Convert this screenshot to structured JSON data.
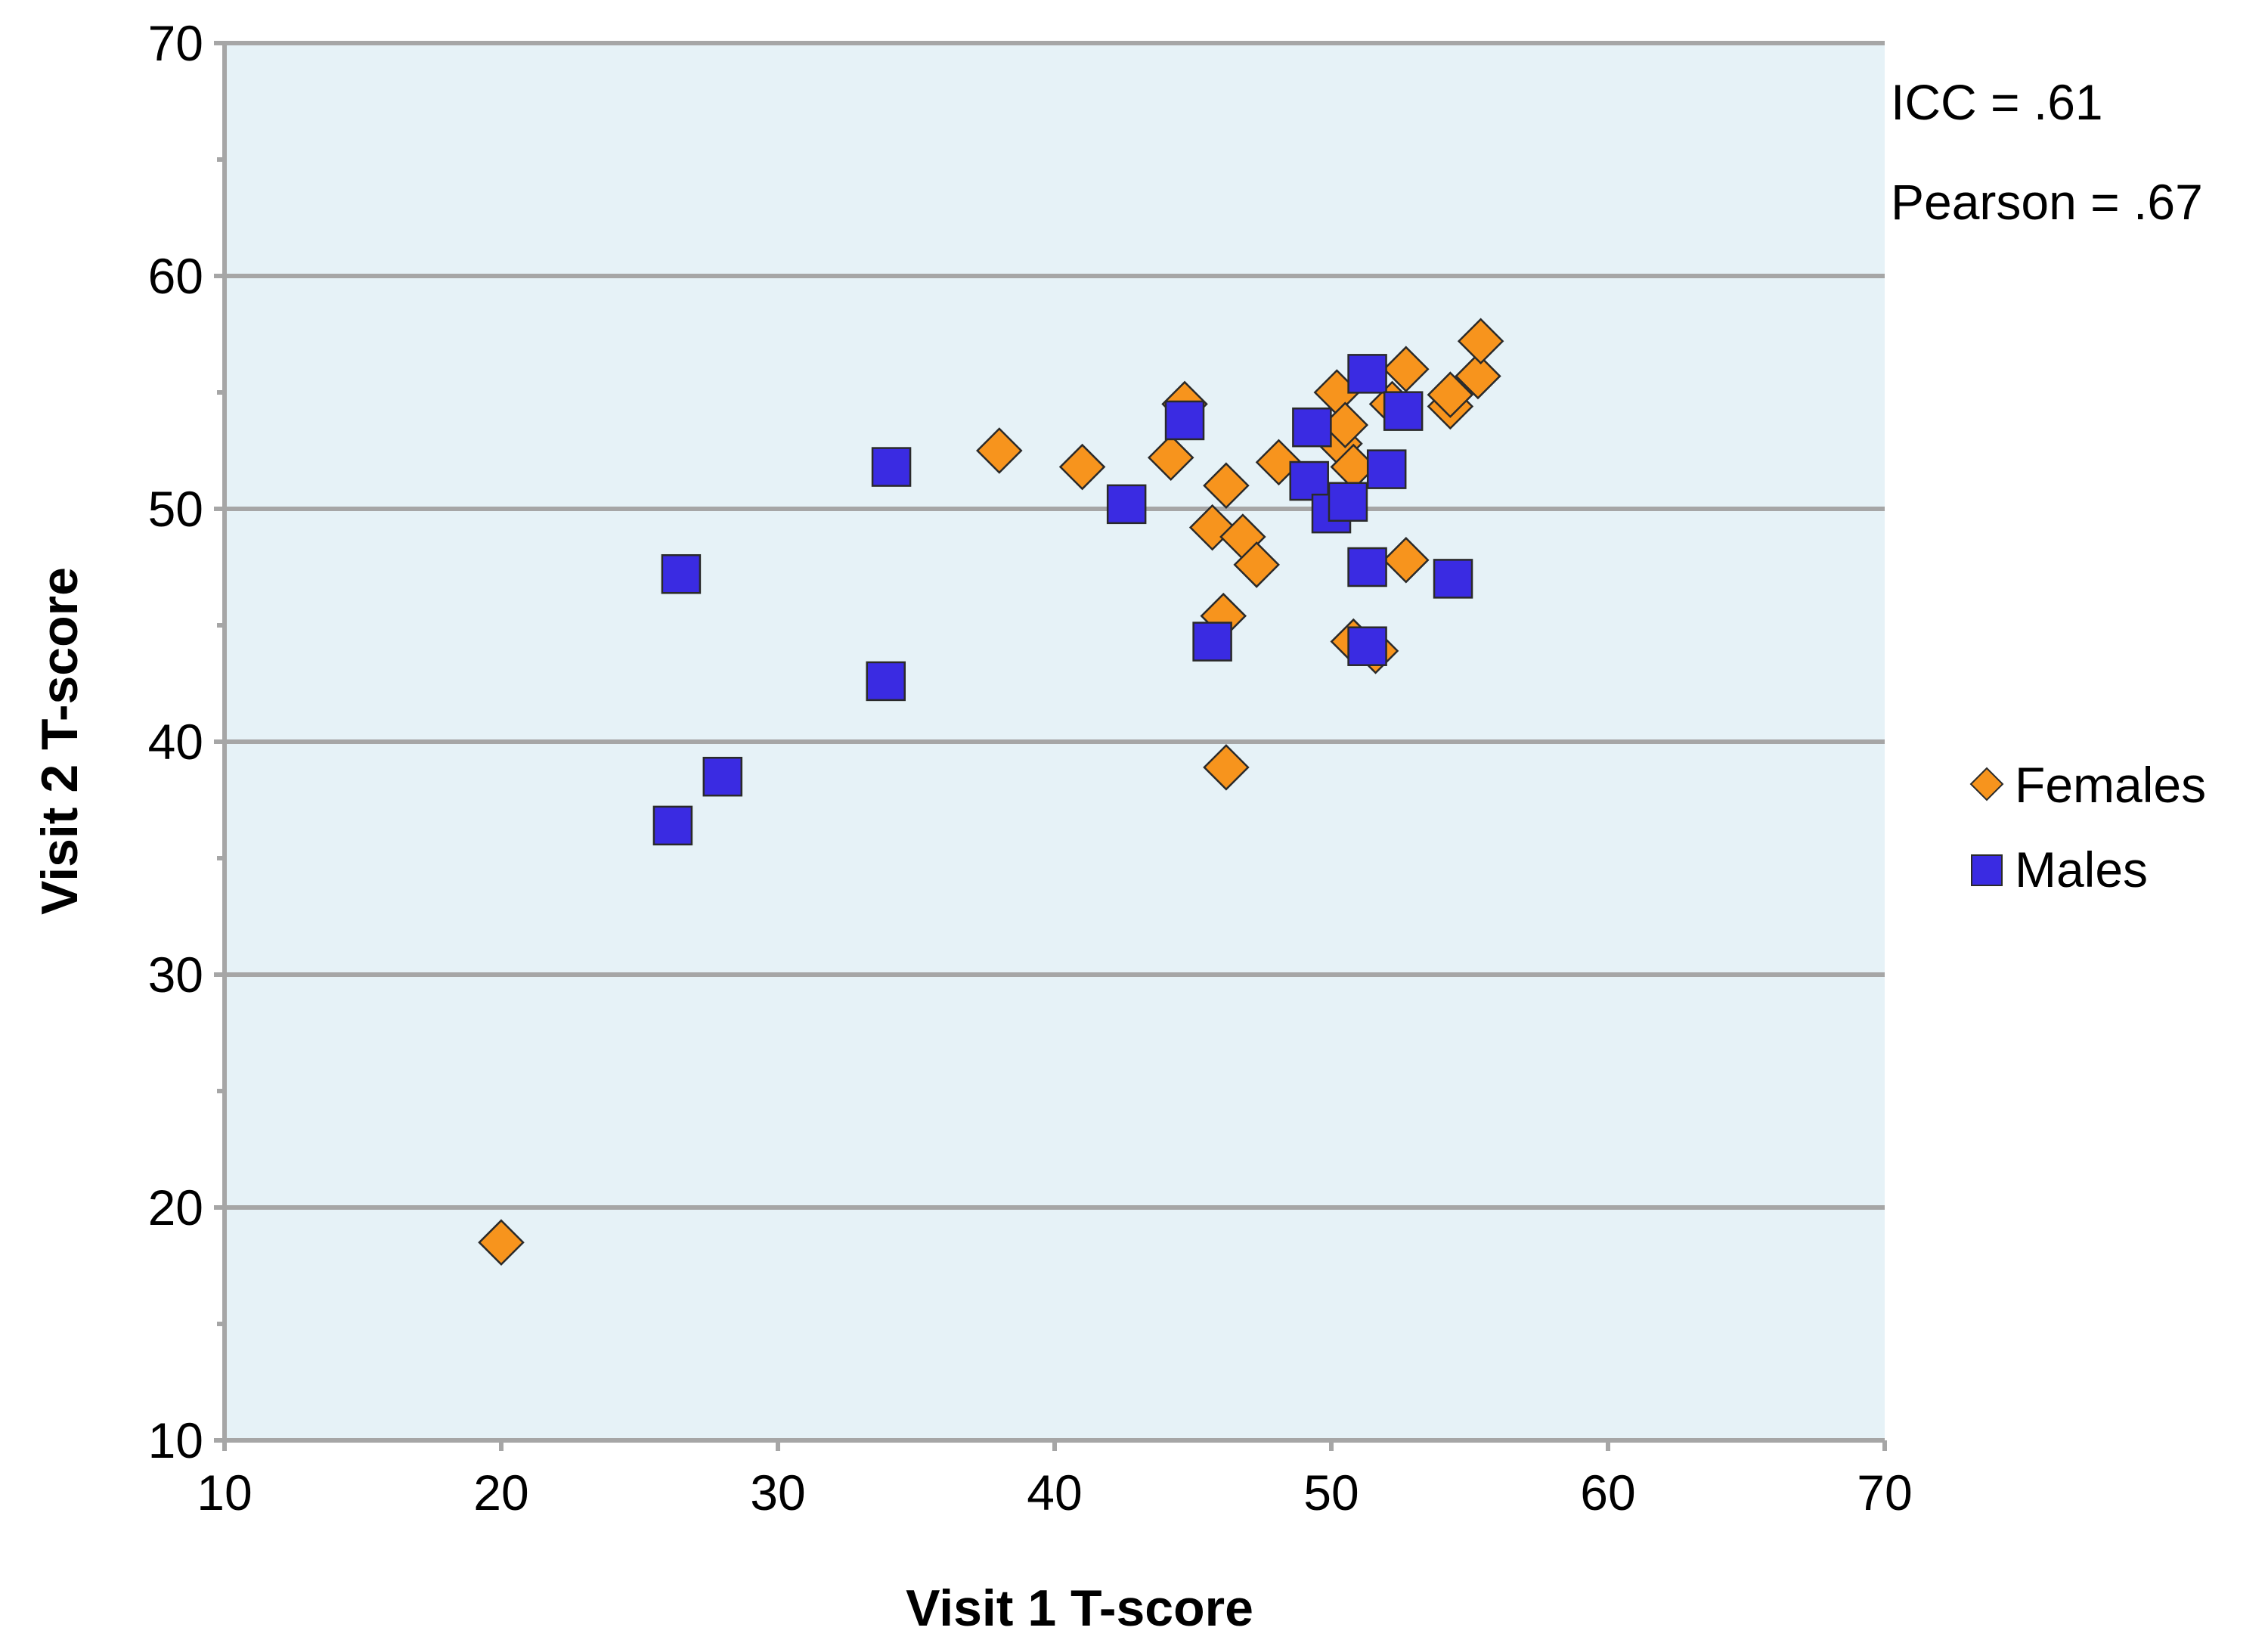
{
  "chart_data": {
    "type": "scatter",
    "xlabel": "Visit 1 T-score",
    "ylabel": "Visit 2 T-score",
    "xlim": [
      10,
      70
    ],
    "ylim": [
      10,
      70
    ],
    "xticks": [
      "10",
      "20",
      "30",
      "40",
      "50",
      "60",
      "70"
    ],
    "yticks": [
      "10",
      "20",
      "30",
      "40",
      "50",
      "60",
      "70"
    ],
    "grid": "horizontal major gridlines",
    "legend_position": "right",
    "annotations": [
      "ICC = .61",
      "Pearson = .67"
    ],
    "series": [
      {
        "name": "Females",
        "marker": "diamond",
        "color": "#F7941D",
        "points": [
          [
            20.0,
            18.5
          ],
          [
            38.0,
            52.5
          ],
          [
            41.0,
            51.8
          ],
          [
            44.2,
            52.2
          ],
          [
            44.7,
            54.5
          ],
          [
            45.7,
            49.2
          ],
          [
            46.1,
            45.4
          ],
          [
            46.2,
            51.0
          ],
          [
            46.2,
            38.9
          ],
          [
            46.8,
            48.8
          ],
          [
            47.3,
            47.6
          ],
          [
            48.1,
            52.0
          ],
          [
            50.2,
            55.0
          ],
          [
            50.3,
            52.8
          ],
          [
            50.5,
            53.6
          ],
          [
            50.8,
            51.8
          ],
          [
            50.8,
            44.3
          ],
          [
            51.6,
            43.9
          ],
          [
            52.2,
            54.5
          ],
          [
            52.7,
            56.0
          ],
          [
            52.7,
            47.8
          ],
          [
            54.3,
            54.4
          ],
          [
            54.3,
            54.9
          ],
          [
            55.3,
            55.7
          ],
          [
            55.4,
            57.2
          ]
        ]
      },
      {
        "name": "Males",
        "marker": "square",
        "color": "#3A2BE2",
        "points": [
          [
            26.2,
            36.4
          ],
          [
            26.5,
            47.2
          ],
          [
            28.0,
            38.5
          ],
          [
            33.9,
            42.6
          ],
          [
            34.1,
            51.8
          ],
          [
            42.6,
            50.2
          ],
          [
            44.7,
            53.8
          ],
          [
            45.7,
            44.3
          ],
          [
            49.2,
            51.2
          ],
          [
            49.3,
            53.5
          ],
          [
            50.0,
            49.8
          ],
          [
            50.6,
            50.3
          ],
          [
            51.3,
            47.5
          ],
          [
            51.3,
            44.1
          ],
          [
            51.3,
            55.8
          ],
          [
            52.0,
            51.7
          ],
          [
            52.6,
            54.2
          ],
          [
            54.4,
            47.0
          ]
        ]
      }
    ]
  }
}
